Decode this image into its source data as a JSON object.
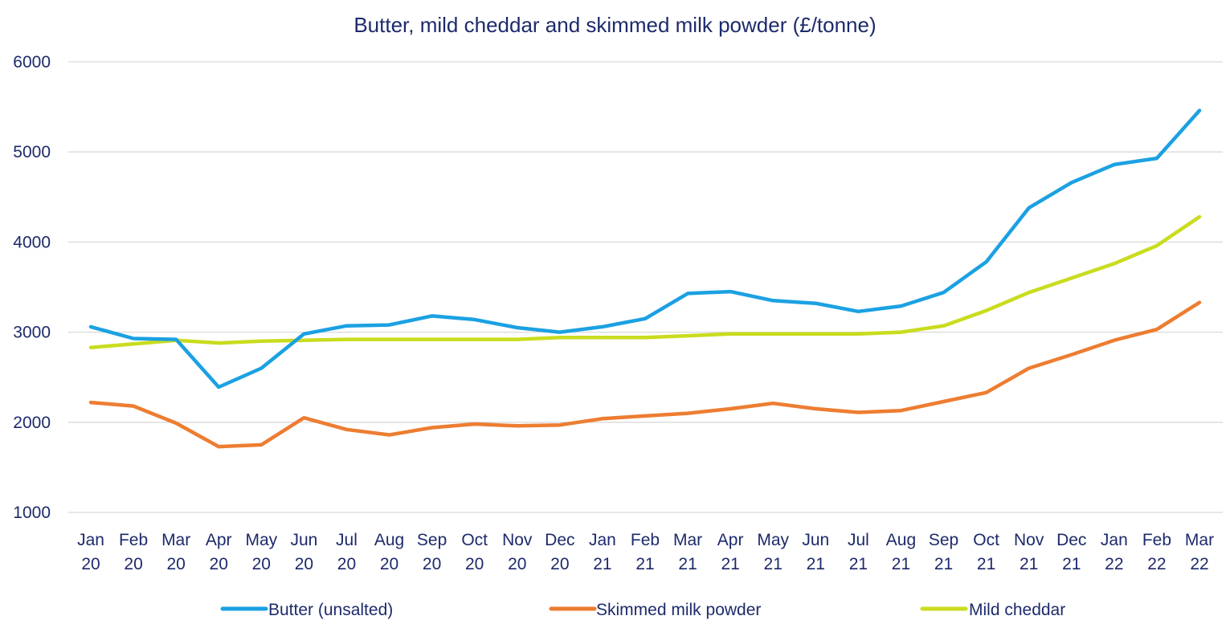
{
  "chart_data": {
    "type": "line",
    "title": "Butter, mild cheddar and skimmed milk powder (£/tonne)",
    "xlabel": "",
    "ylabel": "",
    "ylim": [
      1000,
      6000
    ],
    "yticks": [
      1000,
      2000,
      3000,
      4000,
      5000,
      6000
    ],
    "grid": true,
    "legend_position": "bottom",
    "categories": [
      [
        "Jan",
        "20"
      ],
      [
        "Feb",
        "20"
      ],
      [
        "Mar",
        "20"
      ],
      [
        "Apr",
        "20"
      ],
      [
        "May",
        "20"
      ],
      [
        "Jun",
        "20"
      ],
      [
        "Jul",
        "20"
      ],
      [
        "Aug",
        "20"
      ],
      [
        "Sep",
        "20"
      ],
      [
        "Oct",
        "20"
      ],
      [
        "Nov",
        "20"
      ],
      [
        "Dec",
        "20"
      ],
      [
        "Jan",
        "21"
      ],
      [
        "Feb",
        "21"
      ],
      [
        "Mar",
        "21"
      ],
      [
        "Apr",
        "21"
      ],
      [
        "May",
        "21"
      ],
      [
        "Jun",
        "21"
      ],
      [
        "Jul",
        "21"
      ],
      [
        "Aug",
        "21"
      ],
      [
        "Sep",
        "21"
      ],
      [
        "Oct",
        "21"
      ],
      [
        "Nov",
        "21"
      ],
      [
        "Dec",
        "21"
      ],
      [
        "Jan",
        "22"
      ],
      [
        "Feb",
        "22"
      ],
      [
        "Mar",
        "22"
      ]
    ],
    "series": [
      {
        "name": "Butter (unsalted)",
        "color": "#1ba1e2",
        "values": [
          3060,
          2930,
          2920,
          2390,
          2600,
          2980,
          3070,
          3080,
          3180,
          3140,
          3050,
          3000,
          3060,
          3150,
          3430,
          3450,
          3350,
          3320,
          3230,
          3290,
          3440,
          3780,
          4380,
          4660,
          4860,
          4930,
          5460
        ]
      },
      {
        "name": "Skimmed milk powder",
        "color": "#ed7d31",
        "values": [
          2220,
          2180,
          1990,
          1730,
          1750,
          2050,
          1920,
          1860,
          1940,
          1980,
          1960,
          1970,
          2040,
          2070,
          2100,
          2150,
          2210,
          2150,
          2110,
          2130,
          2230,
          2330,
          2600,
          2750,
          2910,
          3030,
          3330
        ]
      },
      {
        "name": "Mild cheddar",
        "color": "#c9dc1e",
        "values": [
          2830,
          2870,
          2910,
          2880,
          2900,
          2910,
          2920,
          2920,
          2920,
          2920,
          2920,
          2940,
          2940,
          2940,
          2960,
          2980,
          2980,
          2980,
          2980,
          3000,
          3070,
          3240,
          3440,
          3600,
          3760,
          3960,
          4280
        ]
      }
    ]
  }
}
